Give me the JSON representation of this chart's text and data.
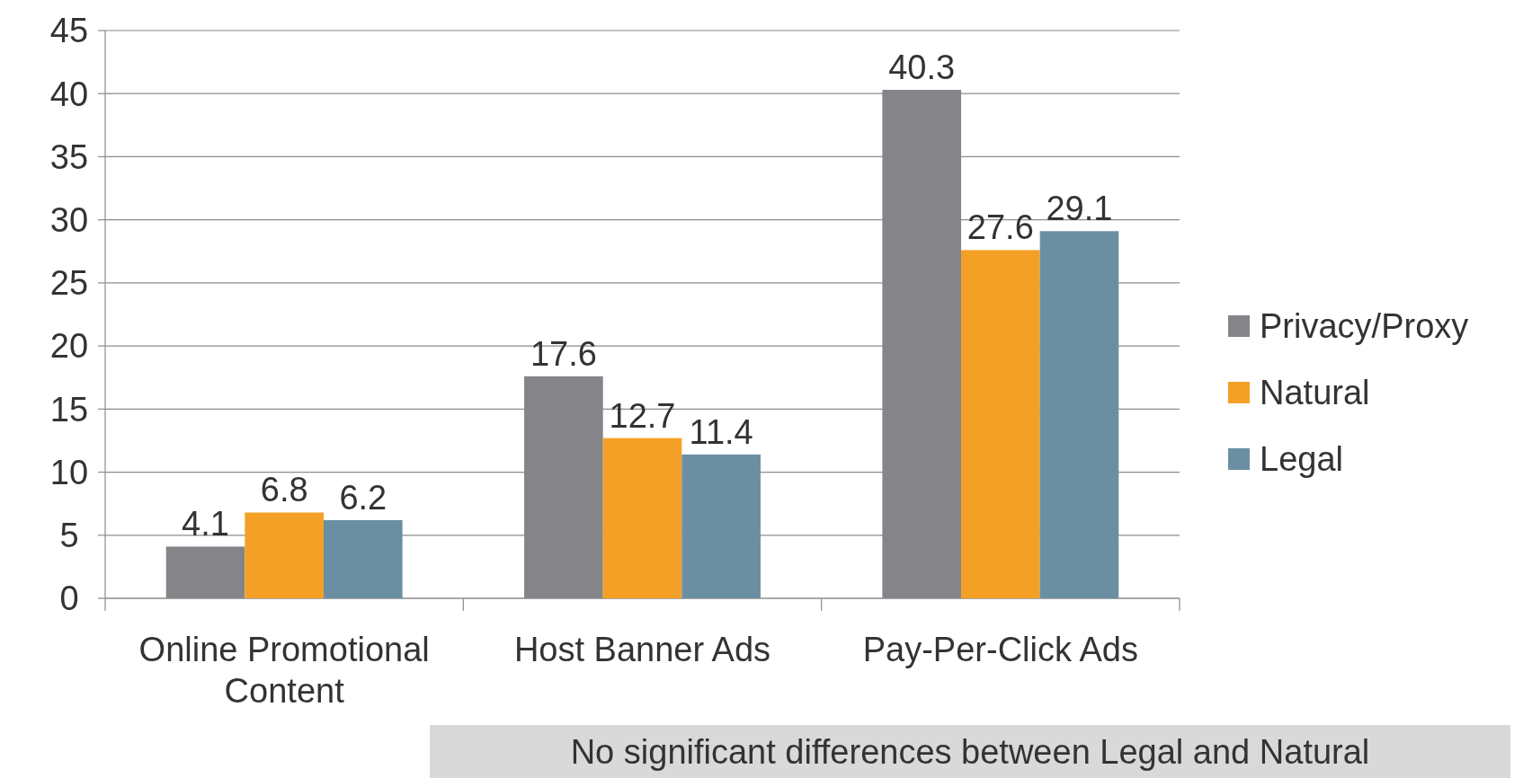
{
  "chart_data": {
    "type": "bar",
    "categories": [
      "Online Promotional Content",
      "Host Banner Ads",
      "Pay-Per-Click Ads"
    ],
    "series": [
      {
        "name": "Privacy/Proxy",
        "color": "#858489",
        "values": [
          4.1,
          17.6,
          40.3
        ]
      },
      {
        "name": "Natural",
        "color": "#f4a026",
        "values": [
          6.8,
          12.7,
          27.6
        ]
      },
      {
        "name": "Legal",
        "color": "#6b8fa2",
        "values": [
          6.2,
          11.4,
          29.1
        ]
      }
    ],
    "ylim": [
      0,
      45
    ],
    "yticks": [
      0,
      5,
      10,
      15,
      20,
      25,
      30,
      35,
      40,
      45
    ],
    "grid": "y",
    "legend": "right",
    "data_labels": true,
    "annotations": [
      "No significant differences between Legal and Natural"
    ]
  }
}
